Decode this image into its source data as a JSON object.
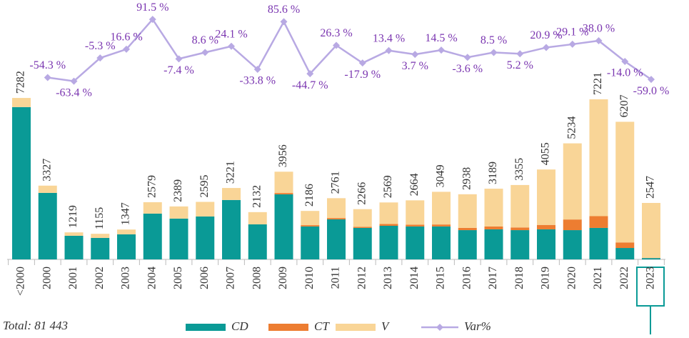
{
  "chart_data": {
    "type": "bar",
    "stacked": true,
    "annotation": "Total: 81 443",
    "categories": [
      "<2000",
      "2000",
      "2001",
      "2002",
      "2003",
      "2004",
      "2005",
      "2006",
      "2007",
      "2008",
      "2009",
      "2010",
      "2011",
      "2012",
      "2013",
      "2014",
      "2015",
      "2016",
      "2017",
      "2018",
      "2019",
      "2020",
      "2021",
      "2022",
      "2023"
    ],
    "series": [
      {
        "name": "CD",
        "color": "#0a9a96",
        "values": [
          6870,
          3000,
          1065,
          970,
          1130,
          2065,
          1840,
          1935,
          2680,
          1580,
          2935,
          1485,
          1805,
          1420,
          1515,
          1485,
          1485,
          1320,
          1355,
          1320,
          1355,
          1320,
          1420,
          515,
          60
        ]
      },
      {
        "name": "CT",
        "color": "#ed7d31",
        "values": [
          0,
          0,
          0,
          0,
          0,
          0,
          0,
          0,
          0,
          0,
          60,
          60,
          60,
          50,
          80,
          80,
          90,
          100,
          130,
          120,
          200,
          480,
          530,
          250,
          10
        ]
      },
      {
        "name": "V",
        "color": "#f9d597",
        "values": [
          412,
          327,
          154,
          185,
          217,
          514,
          549,
          660,
          541,
          552,
          961,
          641,
          896,
          796,
          974,
          1099,
          1474,
          1518,
          1704,
          1915,
          2500,
          3434,
          5271,
          5442,
          2477
        ]
      },
      {
        "name": "Var%",
        "type": "line",
        "axis": "y2",
        "color": "#b8a9e3",
        "label_color": "#7a35b0",
        "values": [
          null,
          -54.3,
          -63.4,
          -5.3,
          16.6,
          91.5,
          -7.4,
          8.6,
          24.1,
          -33.8,
          85.6,
          -44.7,
          26.3,
          -17.9,
          13.4,
          3.7,
          14.5,
          -3.6,
          8.5,
          5.2,
          20.9,
          29.1,
          38.0,
          -14.0,
          -59.0
        ],
        "value_labels": [
          null,
          "-54.3 %",
          "-63.4 %",
          "-5.3 %",
          "16.6 %",
          "91.5 %",
          "-7.4 %",
          "8.6 %",
          "24.1 %",
          "-33.8 %",
          "85.6 %",
          "-44.7 %",
          "26.3 %",
          "-17.9 %",
          "13.4 %",
          "3.7 %",
          "14.5 %",
          "-3.6 %",
          "8.5 %",
          "5.2 %",
          "20.9 %",
          "29.1 %",
          "38.0 %",
          "-14.0 %",
          "-59.0 %"
        ]
      }
    ],
    "totals": [
      7282,
      3327,
      1219,
      1155,
      1347,
      2579,
      2389,
      2595,
      3221,
      2132,
      3956,
      2186,
      2761,
      2266,
      2569,
      2664,
      3049,
      2938,
      3189,
      3355,
      4055,
      5234,
      7221,
      6207,
      2547
    ],
    "ylim": [
      0,
      11700
    ],
    "y2lim": [
      -510,
      140
    ]
  }
}
